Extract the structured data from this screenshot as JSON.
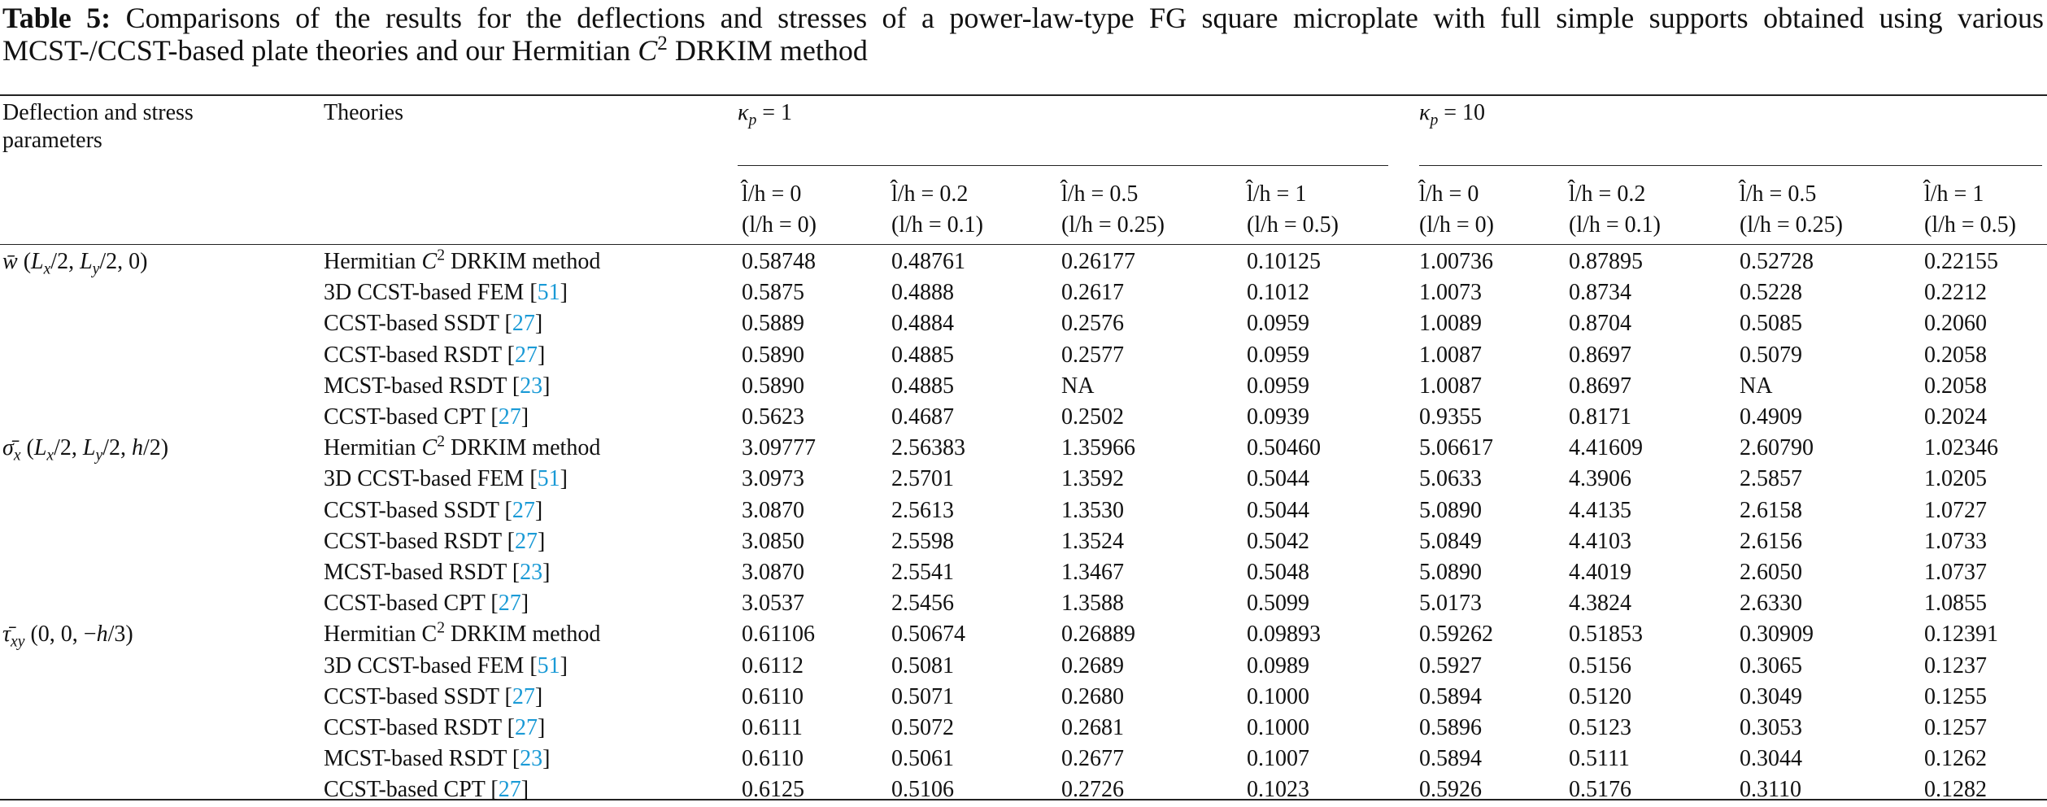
{
  "caption": {
    "label": "Table 5:",
    "text": [
      "Comparisons of the results for the deflections and stresses of a power-law-type FG square microplate with full simple supports obtained using various MCST-/CCST-based plate theories and our Hermitian ",
      {
        "i": "C"
      },
      {
        "sup": "2"
      },
      " DRKIM method"
    ]
  },
  "table": {
    "header": {
      "parameters": "Deflection and stress parameters",
      "theories": "Theories",
      "groups": [
        {
          "label": [
            {
              "i": "κ"
            },
            {
              "sub": "p"
            },
            " = 1"
          ],
          "columns": [
            {
              "top": "l̂/h = 0",
              "bottom": "(l/h = 0)"
            },
            {
              "top": "l̂/h = 0.2",
              "bottom": "(l/h = 0.1)"
            },
            {
              "top": "l̂/h = 0.5",
              "bottom": "(l/h = 0.25)"
            },
            {
              "top": "l̂/h = 1",
              "bottom": "(l/h = 0.5)"
            }
          ]
        },
        {
          "label": [
            {
              "i": "κ"
            },
            {
              "sub": "p"
            },
            " = 10"
          ],
          "columns": [
            {
              "top": "l̂/h = 0",
              "bottom": "(l/h = 0)"
            },
            {
              "top": "l̂/h = 0.2",
              "bottom": "(l/h = 0.1)"
            },
            {
              "top": "l̂/h = 0.5",
              "bottom": "(l/h = 0.25)"
            },
            {
              "top": "l̂/h = 1",
              "bottom": "(l/h = 0.5)"
            }
          ]
        }
      ]
    },
    "sections": [
      {
        "parameter": [
          {
            "i": "w̄"
          },
          " (",
          {
            "i": "L"
          },
          {
            "sub": "x"
          },
          "/2, ",
          {
            "i": "L"
          },
          {
            "sub": "y"
          },
          "/2, 0)"
        ],
        "rows": [
          {
            "theory": [
              "Hermitian ",
              {
                "i": "C"
              },
              {
                "sup": "2"
              },
              " DRKIM method"
            ],
            "values": [
              "0.58748",
              "0.48761",
              "0.26177",
              "0.10125",
              "1.00736",
              "0.87895",
              "0.52728",
              "0.22155"
            ]
          },
          {
            "theory": [
              "3D CCST-based FEM [",
              {
                "ref": "51"
              },
              "]"
            ],
            "values": [
              "0.5875",
              "0.4888",
              "0.2617",
              "0.1012",
              "1.0073",
              "0.8734",
              "0.5228",
              "0.2212"
            ]
          },
          {
            "theory": [
              "CCST-based SSDT [",
              {
                "ref": "27"
              },
              "]"
            ],
            "values": [
              "0.5889",
              "0.4884",
              "0.2576",
              "0.0959",
              "1.0089",
              "0.8704",
              "0.5085",
              "0.2060"
            ]
          },
          {
            "theory": [
              "CCST-based RSDT [",
              {
                "ref": "27"
              },
              "]"
            ],
            "values": [
              "0.5890",
              "0.4885",
              "0.2577",
              "0.0959",
              "1.0087",
              "0.8697",
              "0.5079",
              "0.2058"
            ]
          },
          {
            "theory": [
              "MCST-based RSDT [",
              {
                "ref": "23"
              },
              "]"
            ],
            "values": [
              "0.5890",
              "0.4885",
              "NA",
              "0.0959",
              "1.0087",
              "0.8697",
              "NA",
              "0.2058"
            ]
          },
          {
            "theory": [
              "CCST-based CPT [",
              {
                "ref": "27"
              },
              "]"
            ],
            "values": [
              "0.5623",
              "0.4687",
              "0.2502",
              "0.0939",
              "0.9355",
              "0.8171",
              "0.4909",
              "0.2024"
            ]
          }
        ]
      },
      {
        "parameter": [
          {
            "i": "σ̄"
          },
          {
            "sub": "x"
          },
          " (",
          {
            "i": "L"
          },
          {
            "sub": "x"
          },
          "/2, ",
          {
            "i": "L"
          },
          {
            "sub": "y"
          },
          "/2, ",
          {
            "i": "h"
          },
          "/2)"
        ],
        "rows": [
          {
            "theory": [
              "Hermitian ",
              {
                "i": "C"
              },
              {
                "sup": "2"
              },
              " DRKIM method"
            ],
            "values": [
              "3.09777",
              "2.56383",
              "1.35966",
              "0.50460",
              "5.06617",
              "4.41609",
              "2.60790",
              "1.02346"
            ]
          },
          {
            "theory": [
              "3D CCST-based FEM [",
              {
                "ref": "51"
              },
              "]"
            ],
            "values": [
              "3.0973",
              "2.5701",
              "1.3592",
              "0.5044",
              "5.0633",
              "4.3906",
              "2.5857",
              "1.0205"
            ]
          },
          {
            "theory": [
              "CCST-based SSDT [",
              {
                "ref": "27"
              },
              "]"
            ],
            "values": [
              "3.0870",
              "2.5613",
              "1.3530",
              "0.5044",
              "5.0890",
              "4.4135",
              "2.6158",
              "1.0727"
            ]
          },
          {
            "theory": [
              "CCST-based RSDT [",
              {
                "ref": "27"
              },
              "]"
            ],
            "values": [
              "3.0850",
              "2.5598",
              "1.3524",
              "0.5042",
              "5.0849",
              "4.4103",
              "2.6156",
              "1.0733"
            ]
          },
          {
            "theory": [
              "MCST-based RSDT [",
              {
                "ref": "23"
              },
              "]"
            ],
            "values": [
              "3.0870",
              "2.5541",
              "1.3467",
              "0.5048",
              "5.0890",
              "4.4019",
              "2.6050",
              "1.0737"
            ]
          },
          {
            "theory": [
              "CCST-based CPT [",
              {
                "ref": "27"
              },
              "]"
            ],
            "values": [
              "3.0537",
              "2.5456",
              "1.3588",
              "0.5099",
              "5.0173",
              "4.3824",
              "2.6330",
              "1.0855"
            ]
          }
        ]
      },
      {
        "parameter": [
          {
            "i": "τ̄"
          },
          {
            "sub": "xy"
          },
          " (0, 0, −",
          {
            "i": "h"
          },
          "/3)"
        ],
        "rows": [
          {
            "theory": [
              "Hermitian C",
              {
                "sup": "2"
              },
              " DRKIM method"
            ],
            "values": [
              "0.61106",
              "0.50674",
              "0.26889",
              "0.09893",
              "0.59262",
              "0.51853",
              "0.30909",
              "0.12391"
            ]
          },
          {
            "theory": [
              "3D CCST-based FEM [",
              {
                "ref": "51"
              },
              "]"
            ],
            "values": [
              "0.6112",
              "0.5081",
              "0.2689",
              "0.0989",
              "0.5927",
              "0.5156",
              "0.3065",
              "0.1237"
            ]
          },
          {
            "theory": [
              "CCST-based SSDT [",
              {
                "ref": "27"
              },
              "]"
            ],
            "values": [
              "0.6110",
              "0.5071",
              "0.2680",
              "0.1000",
              "0.5894",
              "0.5120",
              "0.3049",
              "0.1255"
            ]
          },
          {
            "theory": [
              "CCST-based RSDT [",
              {
                "ref": "27"
              },
              "]"
            ],
            "values": [
              "0.6111",
              "0.5072",
              "0.2681",
              "0.1000",
              "0.5896",
              "0.5123",
              "0.3053",
              "0.1257"
            ]
          },
          {
            "theory": [
              "MCST-based RSDT [",
              {
                "ref": "23"
              },
              "]"
            ],
            "values": [
              "0.6110",
              "0.5061",
              "0.2677",
              "0.1007",
              "0.5894",
              "0.5111",
              "0.3044",
              "0.1262"
            ]
          },
          {
            "theory": [
              "CCST-based CPT [",
              {
                "ref": "27"
              },
              "]"
            ],
            "values": [
              "0.6125",
              "0.5106",
              "0.2726",
              "0.1023",
              "0.5926",
              "0.5176",
              "0.3110",
              "0.1282"
            ]
          }
        ]
      }
    ]
  }
}
